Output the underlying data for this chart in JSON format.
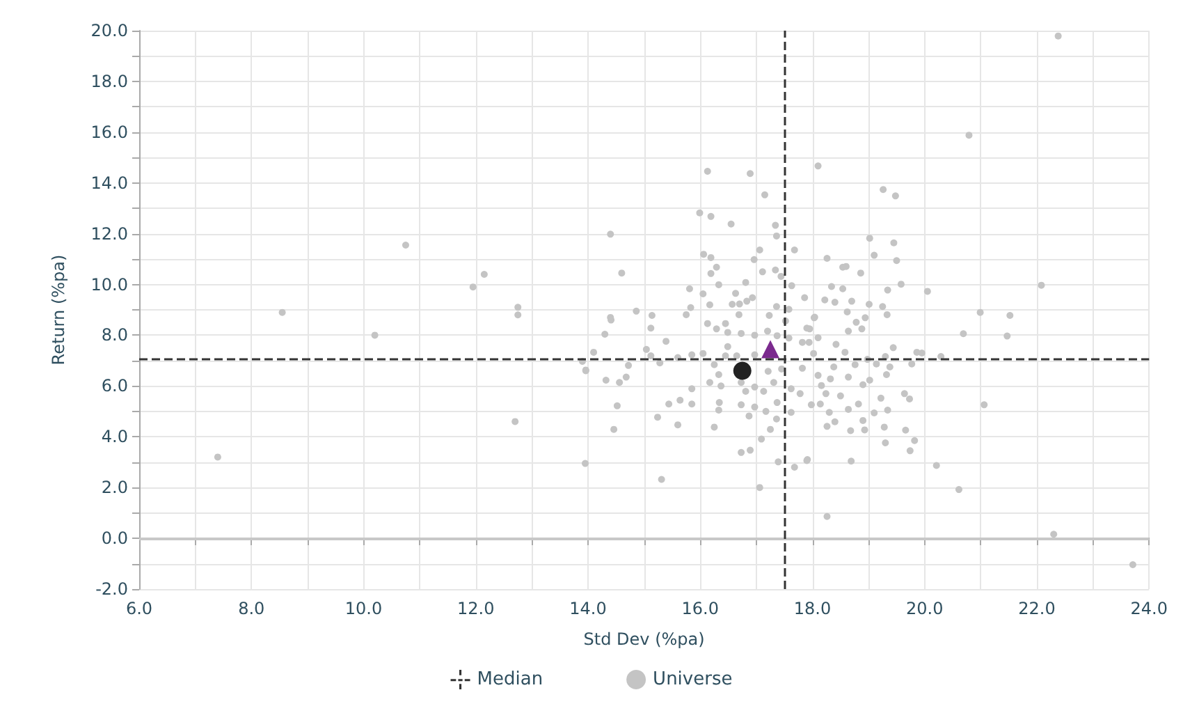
{
  "chart_data": {
    "type": "scatter",
    "xlabel": "Std Dev (%pa)",
    "ylabel": "Return (%pa)",
    "xlim": [
      6,
      24
    ],
    "ylim": [
      -2,
      20
    ],
    "xticks": [
      {
        "value": 6,
        "label": "6.0"
      },
      {
        "value": 7,
        "label": null
      },
      {
        "value": 8,
        "label": "8.0"
      },
      {
        "value": 9,
        "label": null
      },
      {
        "value": 10,
        "label": "10.0"
      },
      {
        "value": 11,
        "label": null
      },
      {
        "value": 12,
        "label": "12.0"
      },
      {
        "value": 13,
        "label": null
      },
      {
        "value": 14,
        "label": "14.0"
      },
      {
        "value": 15,
        "label": null
      },
      {
        "value": 16,
        "label": "16.0"
      },
      {
        "value": 17,
        "label": null
      },
      {
        "value": 18,
        "label": "18.0"
      },
      {
        "value": 19,
        "label": null
      },
      {
        "value": 20,
        "label": "20.0"
      },
      {
        "value": 21,
        "label": null
      },
      {
        "value": 22,
        "label": "22.0"
      },
      {
        "value": 23,
        "label": null
      },
      {
        "value": 24,
        "label": "24.0"
      }
    ],
    "yticks": [
      {
        "value": -2,
        "label": "-2.0"
      },
      {
        "value": -1,
        "label": null
      },
      {
        "value": 0,
        "label": "0.0"
      },
      {
        "value": 1,
        "label": null
      },
      {
        "value": 2,
        "label": "2.0"
      },
      {
        "value": 3,
        "label": null
      },
      {
        "value": 4,
        "label": "4.0"
      },
      {
        "value": 5,
        "label": null
      },
      {
        "value": 6,
        "label": "6.0"
      },
      {
        "value": 7,
        "label": null
      },
      {
        "value": 8,
        "label": "8.0"
      },
      {
        "value": 9,
        "label": null
      },
      {
        "value": 10,
        "label": "10.0"
      },
      {
        "value": 11,
        "label": null
      },
      {
        "value": 12,
        "label": "12.0"
      },
      {
        "value": 13,
        "label": null
      },
      {
        "value": 14,
        "label": "14.0"
      },
      {
        "value": 15,
        "label": null
      },
      {
        "value": 16,
        "label": "16.0"
      },
      {
        "value": 17,
        "label": null
      },
      {
        "value": 18,
        "label": "18.0"
      },
      {
        "value": 19,
        "label": null
      },
      {
        "value": 20,
        "label": "20.0"
      }
    ],
    "grid": true,
    "legend": "bottom",
    "ref_lines": [
      {
        "axis": "y",
        "value": 0,
        "color": "#c8c8c8",
        "line_style": "solid"
      },
      {
        "axis": "x",
        "value": 17.5,
        "label": "Median",
        "color": "#333333",
        "line_style": "dashed"
      },
      {
        "axis": "y",
        "value": 7.05,
        "color": "#333333",
        "line_style": "dashed"
      }
    ],
    "series": [
      {
        "name": "Universe",
        "color": "#c4c4c4",
        "marker": "circle",
        "x": [
          7.4,
          8.55,
          10.2,
          10.75,
          11.95,
          12.15,
          12.7,
          12.75,
          12.75,
          13.95,
          13.9,
          13.96,
          14.1,
          14.4,
          14.4,
          14.6,
          16.13,
          16.89,
          18.1,
          17.15,
          15.99,
          16.19,
          16.55,
          17.34,
          17.36,
          17.68,
          17.06,
          16.06,
          16.19,
          16.96,
          16.29,
          16.19,
          17.11,
          17.34,
          17.44,
          16.81,
          16.33,
          15.81,
          17.63,
          16.05,
          16.63,
          16.93,
          16.83,
          17.86,
          16.57,
          16.7,
          16.17,
          15.83,
          17.36,
          17.58,
          14.86,
          15.14,
          15.75,
          16.69,
          17.23,
          14.41,
          16.45,
          16.13,
          18.04,
          17.52,
          15.12,
          16.29,
          16.49,
          16.73,
          16.97,
          17.2,
          14.3,
          17.95,
          17.37,
          15.39,
          17.58,
          17.82,
          16.49,
          15.04,
          15.12,
          15.6,
          15.85,
          16.05,
          16.45,
          16.65,
          16.97,
          15.28,
          14.72,
          13.96,
          16.25,
          17.21,
          17.45,
          17.82,
          14.32,
          14.68,
          14.56,
          16.33,
          16.17,
          16.37,
          16.73,
          16.97,
          17.13,
          17.31,
          17.62,
          17.78,
          18.1,
          15.85,
          16.81,
          15.64,
          15.44,
          15.85,
          14.52,
          16.34,
          16.73,
          16.97,
          17.17,
          17.62,
          16.33,
          17.37,
          15.24,
          15.6,
          14.46,
          16.25,
          16.87,
          17.25,
          17.36,
          17.09,
          16.89,
          16.73,
          17.9,
          17.68,
          17.39,
          15.31,
          17.06,
          19.26,
          19.48,
          19.02,
          19.45,
          19.1,
          19.5,
          18.26,
          18.54,
          18.6,
          18.86,
          19.58,
          19.34,
          20.05,
          18.34,
          18.22,
          18.54,
          18.4,
          18.7,
          19.01,
          19.25,
          19.33,
          18.62,
          18.94,
          18.78,
          18.88,
          18.03,
          17.9,
          18.64,
          20.99,
          21.52,
          20.69,
          21.47,
          22.08,
          18.1,
          17.94,
          18.42,
          19.44,
          18.58,
          19.86,
          19.95,
          18.02,
          19.3,
          20.29,
          18.98,
          18.76,
          19.14,
          19.77,
          18.38,
          19.38,
          18.64,
          18.32,
          19.32,
          19.02,
          18.16,
          18.9,
          18.24,
          18.5,
          19.64,
          19.73,
          19.22,
          17.98,
          18.14,
          18.3,
          18.64,
          18.82,
          19.1,
          19.34,
          18.9,
          18.4,
          18.26,
          18.68,
          18.93,
          19.28,
          19.66,
          19.82,
          19.74,
          19.3,
          21.06,
          18.69,
          17.91,
          20.21,
          20.61,
          18.26,
          22.3,
          23.71,
          20.79,
          22.38
        ],
        "values": [
          3.2,
          8.9,
          8.0,
          11.55,
          9.9,
          10.4,
          4.6,
          9.1,
          8.8,
          2.95,
          6.97,
          6.6,
          7.33,
          11.98,
          8.7,
          10.45,
          14.46,
          14.37,
          14.67,
          13.53,
          12.82,
          12.68,
          12.38,
          12.33,
          11.91,
          11.36,
          11.36,
          11.19,
          11.06,
          10.98,
          10.68,
          10.43,
          10.5,
          10.57,
          10.32,
          10.08,
          9.99,
          9.83,
          9.95,
          9.63,
          9.65,
          9.48,
          9.34,
          9.48,
          9.22,
          9.23,
          9.2,
          9.09,
          9.13,
          9.02,
          8.95,
          8.78,
          8.81,
          8.81,
          8.78,
          8.6,
          8.46,
          8.46,
          8.71,
          8.56,
          8.28,
          8.25,
          8.11,
          8.07,
          8.0,
          8.16,
          8.04,
          8.25,
          7.98,
          7.76,
          7.89,
          7.72,
          7.55,
          7.44,
          7.19,
          7.12,
          7.23,
          7.28,
          7.19,
          7.19,
          7.23,
          6.91,
          6.81,
          6.63,
          6.84,
          6.58,
          6.67,
          6.7,
          6.23,
          6.35,
          6.14,
          6.45,
          6.14,
          6.0,
          6.14,
          5.96,
          5.79,
          6.14,
          5.89,
          5.7,
          6.42,
          5.89,
          5.79,
          5.44,
          5.29,
          5.29,
          5.22,
          5.35,
          5.26,
          5.17,
          5.0,
          4.96,
          5.05,
          5.35,
          4.77,
          4.47,
          4.29,
          4.38,
          4.82,
          4.29,
          4.7,
          3.91,
          3.47,
          3.38,
          3.06,
          2.8,
          3.01,
          2.32,
          2.0,
          13.74,
          13.49,
          11.82,
          11.64,
          11.15,
          10.94,
          11.03,
          10.68,
          10.71,
          10.45,
          10.01,
          9.78,
          9.73,
          9.92,
          9.39,
          9.83,
          9.3,
          9.34,
          9.22,
          9.13,
          8.81,
          8.92,
          8.69,
          8.51,
          8.25,
          8.69,
          8.28,
          8.16,
          8.9,
          8.78,
          8.06,
          7.97,
          9.97,
          7.9,
          7.72,
          7.64,
          7.51,
          7.33,
          7.33,
          7.3,
          7.28,
          7.16,
          7.16,
          7.05,
          6.84,
          6.87,
          6.87,
          6.75,
          6.75,
          6.35,
          6.28,
          6.45,
          6.23,
          6.02,
          6.05,
          5.7,
          5.61,
          5.7,
          5.49,
          5.52,
          5.26,
          5.29,
          4.96,
          5.08,
          5.29,
          4.94,
          5.05,
          4.64,
          4.59,
          4.41,
          4.24,
          4.27,
          4.38,
          4.26,
          3.85,
          3.45,
          3.76,
          5.26,
          3.04,
          3.1,
          2.87,
          1.92,
          0.86,
          0.16,
          -1.04,
          15.88,
          19.79
        ]
      },
      {
        "color": "#222222",
        "marker": "circle",
        "x": [
          16.75
        ],
        "values": [
          6.6
        ]
      },
      {
        "color": "#7b2a8e",
        "marker": "triangle",
        "x": [
          17.25
        ],
        "values": [
          7.45
        ]
      }
    ]
  }
}
